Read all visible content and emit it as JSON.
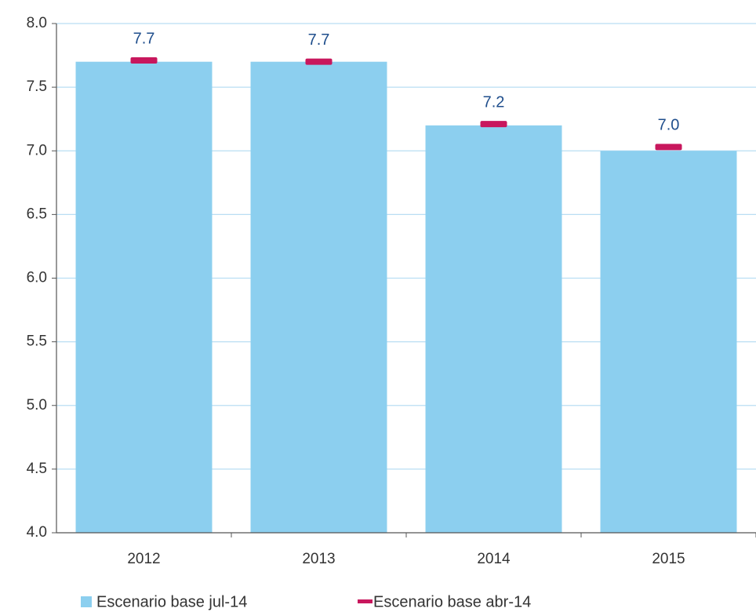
{
  "chart_data": {
    "type": "bar",
    "categories": [
      "2012",
      "2013",
      "2014",
      "2015"
    ],
    "series": [
      {
        "name": "Escenario base jul-14",
        "color": "#8ccfef",
        "type": "bar",
        "values": [
          7.7,
          7.7,
          7.2,
          7.0
        ],
        "value_labels": [
          "7.7",
          "7.7",
          "7.2",
          "7.0"
        ]
      },
      {
        "name": "Escenario base abr-14",
        "color": "#c8175d",
        "type": "dash",
        "values": [
          7.71,
          7.7,
          7.21,
          7.03
        ]
      }
    ],
    "ylim": [
      4.0,
      8.0
    ],
    "yticks": [
      {
        "value": 4.0,
        "label": "4.0"
      },
      {
        "value": 4.5,
        "label": "4.5"
      },
      {
        "value": 5.0,
        "label": "5.0"
      },
      {
        "value": 5.5,
        "label": "5.5"
      },
      {
        "value": 6.0,
        "label": "6.0"
      },
      {
        "value": 6.5,
        "label": "6.5"
      },
      {
        "value": 7.0,
        "label": "7.0"
      },
      {
        "value": 7.5,
        "label": "7.5"
      },
      {
        "value": 8.0,
        "label": "8.0"
      }
    ],
    "grid": true,
    "legend": "bottom"
  }
}
